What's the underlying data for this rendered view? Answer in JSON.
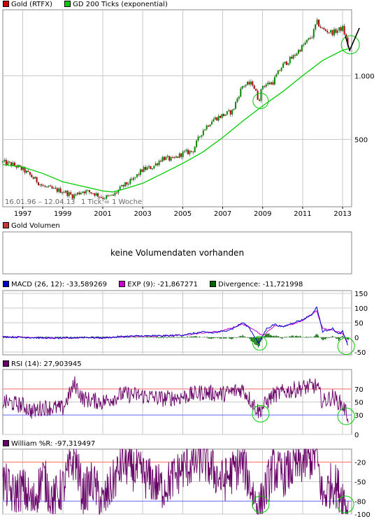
{
  "panels": {
    "price": {
      "legend": [
        {
          "label": "Gold (RTFX)",
          "color": "#cc0000"
        },
        {
          "label": "GD 200 Ticks (exponential)",
          "color": "#00cc00"
        }
      ],
      "y_ticks": [
        "1.000",
        "500"
      ],
      "date_range": "16.01.96 – 12.04.13",
      "tick_note": "1 Tick = 1 Woche",
      "x_ticks": [
        "1997",
        "1999",
        "2001",
        "2003",
        "2005",
        "2007",
        "2009",
        "2011",
        "2013"
      ]
    },
    "volume": {
      "legend": [
        {
          "label": "Gold Volumen",
          "color": "#cc3333"
        }
      ],
      "message": "keine Volumendaten vorhanden"
    },
    "macd": {
      "legend": [
        {
          "label": "MACD (26, 12): -33,589269",
          "color": "#0000cc"
        },
        {
          "label": "EXP (9): -21,867271",
          "color": "#cc00cc"
        },
        {
          "label": "Divergence: -11,721998",
          "color": "#006600"
        }
      ],
      "y_ticks": [
        "150",
        "100",
        "50",
        "0",
        "-50"
      ]
    },
    "rsi": {
      "legend": [
        {
          "label": "RSI (14): 27,903945",
          "color": "#660066"
        }
      ],
      "y_ticks": [
        "70",
        "50",
        "30",
        "0"
      ]
    },
    "williams": {
      "legend": [
        {
          "label": "William %R: -97,319497",
          "color": "#660066"
        }
      ],
      "y_ticks": [
        "-20",
        "-50",
        "-80",
        "-100"
      ]
    }
  },
  "chart_data": [
    {
      "type": "line",
      "x_unit": "year",
      "scale": "log",
      "series": [
        {
          "name": "Gold (RTFX)",
          "color": "#cc0000",
          "x": [
            1996.0,
            1996.5,
            1997.0,
            1997.5,
            1998.0,
            1998.5,
            1999.0,
            1999.5,
            2000.0,
            2000.5,
            2001.0,
            2001.5,
            2002.0,
            2002.5,
            2003.0,
            2003.5,
            2004.0,
            2004.5,
            2005.0,
            2005.5,
            2006.0,
            2006.5,
            2007.0,
            2007.5,
            2008.0,
            2008.5,
            2008.8,
            2009.0,
            2009.5,
            2010.0,
            2010.5,
            2011.0,
            2011.5,
            2011.7,
            2012.0,
            2012.5,
            2013.0,
            2013.28
          ],
          "y": [
            390,
            380,
            360,
            330,
            300,
            290,
            285,
            270,
            285,
            280,
            265,
            270,
            300,
            320,
            360,
            370,
            410,
            400,
            430,
            440,
            550,
            620,
            650,
            680,
            900,
            920,
            760,
            900,
            930,
            1120,
            1220,
            1380,
            1550,
            1800,
            1650,
            1600,
            1680,
            1380
          ]
        },
        {
          "name": "GD 200 Ticks (exponential)",
          "color": "#00cc00",
          "x": [
            1996.0,
            1997.0,
            1998.0,
            1999.0,
            2000.0,
            2001.0,
            2001.5,
            2002.0,
            2003.0,
            2004.0,
            2005.0,
            2006.0,
            2007.0,
            2008.0,
            2009.0,
            2010.0,
            2011.0,
            2012.0,
            2013.0,
            2013.28
          ],
          "y": [
            380,
            370,
            345,
            315,
            300,
            285,
            282,
            290,
            310,
            345,
            385,
            435,
            510,
            610,
            720,
            840,
            1000,
            1180,
            1320,
            1340
          ]
        }
      ]
    },
    {
      "type": "line",
      "x_unit": "year",
      "ylim": [
        -50,
        150
      ],
      "series": [
        {
          "name": "MACD (26, 12)",
          "color": "#0000cc",
          "x": [
            1996.0,
            1997.0,
            1998.0,
            1999.0,
            2000.0,
            2001.0,
            2002.0,
            2003.0,
            2004.0,
            2005.0,
            2006.0,
            2006.5,
            2007.0,
            2007.5,
            2008.0,
            2008.3,
            2008.8,
            2009.2,
            2009.6,
            2010.0,
            2010.5,
            2011.0,
            2011.5,
            2011.7,
            2012.0,
            2012.5,
            2012.8,
            2013.0,
            2013.28
          ],
          "y": [
            2,
            0,
            -2,
            -3,
            0,
            -2,
            3,
            5,
            5,
            8,
            18,
            15,
            20,
            30,
            50,
            35,
            -20,
            30,
            45,
            35,
            50,
            60,
            80,
            105,
            20,
            30,
            10,
            20,
            -34
          ]
        },
        {
          "name": "EXP (9)",
          "color": "#cc00cc",
          "x": [
            1996.0,
            1997.0,
            1998.0,
            1999.0,
            2000.0,
            2001.0,
            2002.0,
            2003.0,
            2004.0,
            2005.0,
            2006.0,
            2007.0,
            2008.0,
            2008.5,
            2009.0,
            2009.6,
            2010.0,
            2010.5,
            2011.0,
            2011.7,
            2012.0,
            2012.5,
            2013.0,
            2013.28
          ],
          "y": [
            2,
            0,
            -2,
            -3,
            -1,
            -2,
            2,
            4,
            5,
            7,
            15,
            22,
            45,
            30,
            5,
            40,
            38,
            45,
            58,
            90,
            30,
            25,
            15,
            -22
          ]
        }
      ]
    },
    {
      "type": "line",
      "x_unit": "year",
      "ylim": [
        0,
        100
      ],
      "series": [
        {
          "name": "RSI (14)",
          "color": "#660066",
          "x": [
            1996.0,
            1997.0,
            1997.5,
            1998.0,
            1999.0,
            1999.6,
            2000.0,
            2001.0,
            2002.0,
            2003.0,
            2004.0,
            2005.0,
            2006.0,
            2007.0,
            2008.0,
            2008.8,
            2009.5,
            2010.0,
            2011.0,
            2011.7,
            2012.0,
            2012.5,
            2013.0,
            2013.28
          ],
          "y": [
            50,
            45,
            35,
            42,
            40,
            78,
            55,
            50,
            62,
            60,
            55,
            58,
            65,
            62,
            70,
            35,
            60,
            65,
            72,
            75,
            50,
            58,
            45,
            28
          ]
        }
      ]
    },
    {
      "type": "line",
      "x_unit": "year",
      "ylim": [
        -100,
        0
      ],
      "series": [
        {
          "name": "William %R",
          "color": "#660066",
          "x": [
            1996.0,
            1996.5,
            1997.0,
            1997.5,
            1998.0,
            1998.5,
            1999.0,
            1999.6,
            2000.0,
            2000.5,
            2001.0,
            2002.0,
            2003.0,
            2004.0,
            2005.0,
            2006.0,
            2007.0,
            2008.0,
            2008.8,
            2009.5,
            2010.0,
            2011.0,
            2011.7,
            2012.0,
            2012.5,
            2013.0,
            2013.28
          ],
          "y": [
            -50,
            -70,
            -60,
            -85,
            -40,
            -80,
            -60,
            -10,
            -70,
            -50,
            -85,
            -20,
            -40,
            -60,
            -30,
            -15,
            -50,
            -20,
            -95,
            -30,
            -40,
            -20,
            -10,
            -75,
            -50,
            -70,
            -97
          ]
        }
      ]
    }
  ]
}
